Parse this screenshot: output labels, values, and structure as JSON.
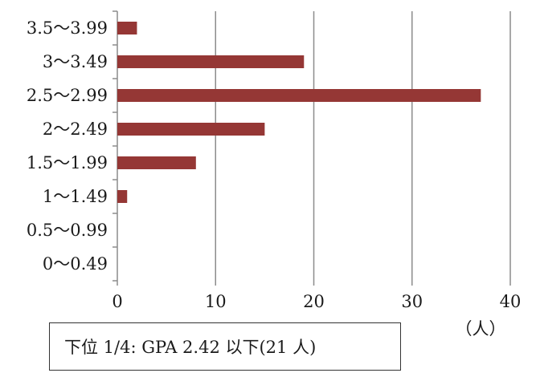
{
  "chart_data": {
    "type": "bar",
    "orientation": "horizontal",
    "categories": [
      "3.5〜3.99",
      "3〜3.49",
      "2.5〜2.99",
      "2〜2.49",
      "1.5〜1.99",
      "1〜1.49",
      "0.5〜0.99",
      "0〜0.49"
    ],
    "values": [
      2,
      19,
      37,
      15,
      8,
      1,
      0,
      0
    ],
    "xlim": [
      0,
      40
    ],
    "xticks": [
      "0",
      "10",
      "20",
      "30",
      "40"
    ],
    "xlabel": "（人）",
    "ylabel": "",
    "title": "",
    "grid": "vertical",
    "bar_color": "#953735"
  },
  "annotation": {
    "text": "下位 1/4:  GPA 2.42 以下(21 人)"
  }
}
